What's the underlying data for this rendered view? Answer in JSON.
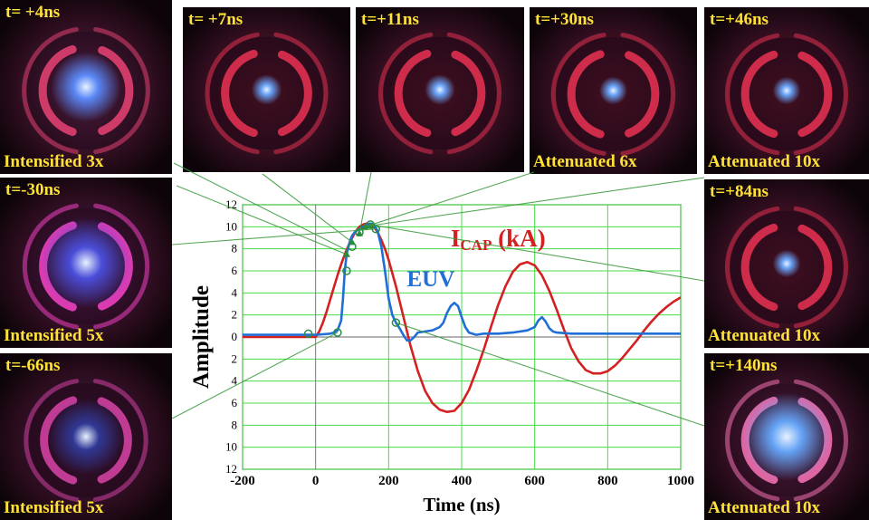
{
  "panels": [
    {
      "time_label": "t= +4ns",
      "caption": "Intensified 3x"
    },
    {
      "time_label": "t= +7ns",
      "caption": ""
    },
    {
      "time_label": "t=+11ns",
      "caption": ""
    },
    {
      "time_label": "t=+30ns",
      "caption": "Attenuated 6x"
    },
    {
      "time_label": "t=+46ns",
      "caption": "Attenuated 10x"
    },
    {
      "time_label": "t=-30ns",
      "caption": "Intensified 5x"
    },
    {
      "time_label": "t=-66ns",
      "caption": "Intensified 5x"
    },
    {
      "time_label": "t=+84ns",
      "caption": "Attenuated 10x"
    },
    {
      "time_label": "t=+140ns",
      "caption": "Attenuated 10x"
    }
  ],
  "colors": {
    "icap": "#d42020",
    "euv": "#1f6fd6",
    "grid": "#44dd44",
    "label": "#ffe236",
    "connector": "#3a9a3a"
  },
  "chart_data": {
    "type": "line",
    "xlabel": "Time (ns)",
    "ylabel": "Amplitude",
    "xlim": [
      -200,
      1000
    ],
    "ylim": [
      -12,
      12
    ],
    "xticks": [
      "-200",
      "0",
      "200",
      "400",
      "600",
      "800",
      "1000"
    ],
    "yticks": [
      "12",
      "10",
      "8",
      "6",
      "4",
      "2",
      "0",
      "2",
      "4",
      "6",
      "8",
      "10",
      "12"
    ],
    "ytick_values": [
      12,
      10,
      8,
      6,
      4,
      2,
      0,
      -2,
      -4,
      -6,
      -8,
      -10,
      -12
    ],
    "grid": true,
    "series": [
      {
        "name": "ICAP (kA)",
        "name_main": "I",
        "name_sub": "CAP",
        "name_unit": " (kA)",
        "color": "#d42020",
        "x": [
          -200,
          0,
          10,
          20,
          30,
          40,
          50,
          60,
          70,
          80,
          90,
          100,
          110,
          120,
          130,
          140,
          150,
          160,
          170,
          180,
          190,
          200,
          220,
          240,
          260,
          280,
          300,
          320,
          340,
          360,
          380,
          400,
          420,
          440,
          460,
          480,
          500,
          520,
          540,
          560,
          580,
          600,
          620,
          640,
          660,
          680,
          700,
          720,
          740,
          760,
          780,
          800,
          820,
          840,
          860,
          880,
          900,
          920,
          940,
          960,
          980,
          1000
        ],
        "y": [
          0,
          0,
          0.5,
          1.3,
          2.3,
          3.4,
          4.5,
          5.6,
          6.6,
          7.5,
          8.3,
          9.0,
          9.6,
          10.0,
          10.2,
          10.3,
          10.2,
          10.0,
          9.5,
          8.8,
          8.0,
          7.0,
          4.6,
          1.9,
          -0.8,
          -3.1,
          -4.9,
          -6.0,
          -6.6,
          -6.8,
          -6.7,
          -6.0,
          -4.8,
          -3.1,
          -1.2,
          0.9,
          2.9,
          4.6,
          5.9,
          6.6,
          6.8,
          6.5,
          5.6,
          4.2,
          2.5,
          0.7,
          -1.0,
          -2.2,
          -3.0,
          -3.3,
          -3.3,
          -3.1,
          -2.6,
          -1.9,
          -1.1,
          -0.3,
          0.6,
          1.4,
          2.1,
          2.7,
          3.2,
          3.6
        ]
      },
      {
        "name": "EUV",
        "color": "#1f6fd6",
        "x": [
          -200,
          -100,
          0,
          20,
          40,
          50,
          60,
          70,
          75,
          80,
          85,
          90,
          95,
          100,
          110,
          120,
          130,
          140,
          150,
          160,
          170,
          180,
          190,
          200,
          210,
          220,
          230,
          240,
          250,
          260,
          270,
          280,
          300,
          320,
          340,
          350,
          360,
          370,
          380,
          390,
          400,
          410,
          420,
          440,
          460,
          500,
          540,
          580,
          600,
          610,
          620,
          630,
          640,
          650,
          660,
          700,
          800,
          900,
          1000
        ],
        "y": [
          0.2,
          0.2,
          0.2,
          0.25,
          0.3,
          0.4,
          0.6,
          1.5,
          3.5,
          6.0,
          7.5,
          8.2,
          8.8,
          9.2,
          9.6,
          9.8,
          10.0,
          10.2,
          10.3,
          10.2,
          9.6,
          8.2,
          6.0,
          3.5,
          2.0,
          1.3,
          0.8,
          0.2,
          -0.3,
          -0.3,
          0.0,
          0.4,
          0.5,
          0.6,
          0.9,
          1.3,
          2.2,
          2.8,
          3.1,
          2.8,
          1.8,
          0.9,
          0.4,
          0.2,
          0.3,
          0.3,
          0.4,
          0.6,
          0.9,
          1.5,
          1.8,
          1.4,
          0.8,
          0.5,
          0.4,
          0.3,
          0.3,
          0.3,
          0.3
        ]
      }
    ],
    "markers": {
      "euv_circles": [
        [
          -20,
          0.3
        ],
        [
          60,
          0.4
        ],
        [
          85,
          6.0
        ],
        [
          100,
          8.2
        ],
        [
          120,
          9.5
        ],
        [
          150,
          10.2
        ],
        [
          165,
          9.8
        ],
        [
          220,
          1.3
        ]
      ],
      "green_triangles": [
        [
          85,
          7.5
        ],
        [
          100,
          8.6
        ],
        [
          120,
          9.4
        ],
        [
          135,
          10.0
        ],
        [
          150,
          10.1
        ]
      ]
    },
    "labels": [
      {
        "text": "EUV",
        "series": "EUV"
      },
      {
        "text": "ICAP (kA)",
        "series": "ICAP (kA)"
      }
    ]
  }
}
